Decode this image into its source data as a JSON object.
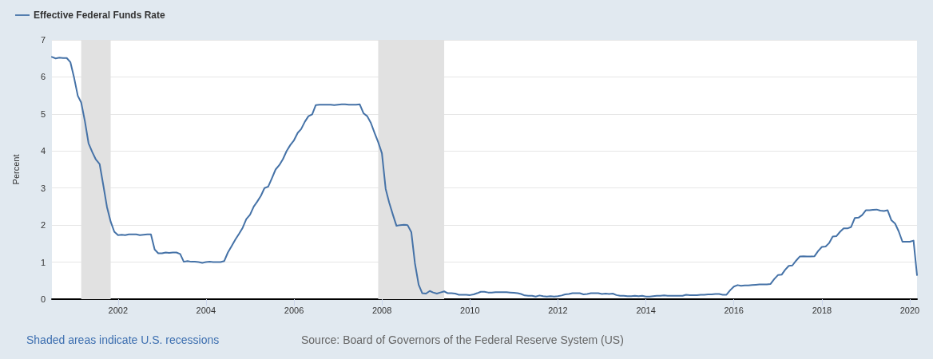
{
  "chart_data": {
    "type": "line",
    "ylabel": "Percent",
    "legend": "top left",
    "grid": "y",
    "marker": "none",
    "line_style": "solid",
    "annotations": [
      "Shaded areas indicate U.S. recessions",
      "Source: Board of Governors of the Federal Reserve System (US)"
    ],
    "xlim": [
      "2000-07",
      "2020-03"
    ],
    "xticks": [
      "2002",
      "2004",
      "2006",
      "2008",
      "2010",
      "2012",
      "2014",
      "2016",
      "2018",
      "2020"
    ],
    "ylim": [
      0,
      7
    ],
    "yticks": [
      0,
      1,
      2,
      3,
      4,
      5,
      6,
      7
    ],
    "bands": [
      {
        "axis": "x",
        "from": "2001-03",
        "to": "2001-11",
        "color": "#e1e1e1"
      },
      {
        "axis": "x",
        "from": "2007-12",
        "to": "2009-06",
        "color": "#e1e1e1"
      }
    ],
    "x": [
      "2000-07",
      "2000-08",
      "2000-09",
      "2000-10",
      "2000-11",
      "2000-12",
      "2001-01",
      "2001-02",
      "2001-03",
      "2001-04",
      "2001-05",
      "2001-06",
      "2001-07",
      "2001-08",
      "2001-09",
      "2001-10",
      "2001-11",
      "2001-12",
      "2002-01",
      "2002-02",
      "2002-03",
      "2002-04",
      "2002-05",
      "2002-06",
      "2002-07",
      "2002-08",
      "2002-09",
      "2002-10",
      "2002-11",
      "2002-12",
      "2003-01",
      "2003-02",
      "2003-03",
      "2003-04",
      "2003-05",
      "2003-06",
      "2003-07",
      "2003-08",
      "2003-09",
      "2003-10",
      "2003-11",
      "2003-12",
      "2004-01",
      "2004-02",
      "2004-03",
      "2004-04",
      "2004-05",
      "2004-06",
      "2004-07",
      "2004-08",
      "2004-09",
      "2004-10",
      "2004-11",
      "2004-12",
      "2005-01",
      "2005-02",
      "2005-03",
      "2005-04",
      "2005-05",
      "2005-06",
      "2005-07",
      "2005-08",
      "2005-09",
      "2005-10",
      "2005-11",
      "2005-12",
      "2006-01",
      "2006-02",
      "2006-03",
      "2006-04",
      "2006-05",
      "2006-06",
      "2006-07",
      "2006-08",
      "2006-09",
      "2006-10",
      "2006-11",
      "2006-12",
      "2007-01",
      "2007-02",
      "2007-03",
      "2007-04",
      "2007-05",
      "2007-06",
      "2007-07",
      "2007-08",
      "2007-09",
      "2007-10",
      "2007-11",
      "2007-12",
      "2008-01",
      "2008-02",
      "2008-03",
      "2008-04",
      "2008-05",
      "2008-06",
      "2008-07",
      "2008-08",
      "2008-09",
      "2008-10",
      "2008-11",
      "2008-12",
      "2009-01",
      "2009-02",
      "2009-03",
      "2009-04",
      "2009-05",
      "2009-06",
      "2009-07",
      "2009-08",
      "2009-09",
      "2009-10",
      "2009-11",
      "2009-12",
      "2010-01",
      "2010-02",
      "2010-03",
      "2010-04",
      "2010-05",
      "2010-06",
      "2010-07",
      "2010-08",
      "2010-09",
      "2010-10",
      "2010-11",
      "2010-12",
      "2011-01",
      "2011-02",
      "2011-03",
      "2011-04",
      "2011-05",
      "2011-06",
      "2011-07",
      "2011-08",
      "2011-09",
      "2011-10",
      "2011-11",
      "2011-12",
      "2012-01",
      "2012-02",
      "2012-03",
      "2012-04",
      "2012-05",
      "2012-06",
      "2012-07",
      "2012-08",
      "2012-09",
      "2012-10",
      "2012-11",
      "2012-12",
      "2013-01",
      "2013-02",
      "2013-03",
      "2013-04",
      "2013-05",
      "2013-06",
      "2013-07",
      "2013-08",
      "2013-09",
      "2013-10",
      "2013-11",
      "2013-12",
      "2014-01",
      "2014-02",
      "2014-03",
      "2014-04",
      "2014-05",
      "2014-06",
      "2014-07",
      "2014-08",
      "2014-09",
      "2014-10",
      "2014-11",
      "2014-12",
      "2015-01",
      "2015-02",
      "2015-03",
      "2015-04",
      "2015-05",
      "2015-06",
      "2015-07",
      "2015-08",
      "2015-09",
      "2015-10",
      "2015-11",
      "2015-12",
      "2016-01",
      "2016-02",
      "2016-03",
      "2016-04",
      "2016-05",
      "2016-06",
      "2016-07",
      "2016-08",
      "2016-09",
      "2016-10",
      "2016-11",
      "2016-12",
      "2017-01",
      "2017-02",
      "2017-03",
      "2017-04",
      "2017-05",
      "2017-06",
      "2017-07",
      "2017-08",
      "2017-09",
      "2017-10",
      "2017-11",
      "2017-12",
      "2018-01",
      "2018-02",
      "2018-03",
      "2018-04",
      "2018-05",
      "2018-06",
      "2018-07",
      "2018-08",
      "2018-09",
      "2018-10",
      "2018-11",
      "2018-12",
      "2019-01",
      "2019-02",
      "2019-03",
      "2019-04",
      "2019-05",
      "2019-06",
      "2019-07",
      "2019-08",
      "2019-09",
      "2019-10",
      "2019-11",
      "2019-12",
      "2020-01",
      "2020-02",
      "2020-03"
    ],
    "series": [
      {
        "name": "Effective Federal Funds Rate",
        "color": "#4572a7",
        "values": [
          6.54,
          6.5,
          6.52,
          6.51,
          6.51,
          6.4,
          5.98,
          5.49,
          5.31,
          4.8,
          4.21,
          3.97,
          3.77,
          3.65,
          3.07,
          2.49,
          2.09,
          1.82,
          1.73,
          1.74,
          1.73,
          1.75,
          1.75,
          1.75,
          1.73,
          1.74,
          1.75,
          1.75,
          1.34,
          1.24,
          1.24,
          1.26,
          1.25,
          1.26,
          1.26,
          1.22,
          1.01,
          1.03,
          1.01,
          1.01,
          1.0,
          0.98,
          1.0,
          1.01,
          1.0,
          1.0,
          1.0,
          1.03,
          1.26,
          1.43,
          1.61,
          1.76,
          1.93,
          2.16,
          2.28,
          2.5,
          2.63,
          2.79,
          3.0,
          3.04,
          3.26,
          3.5,
          3.62,
          3.78,
          4.0,
          4.16,
          4.29,
          4.49,
          4.59,
          4.79,
          4.94,
          4.99,
          5.24,
          5.25,
          5.25,
          5.25,
          5.25,
          5.24,
          5.25,
          5.26,
          5.26,
          5.25,
          5.25,
          5.25,
          5.26,
          5.02,
          4.94,
          4.76,
          4.49,
          4.24,
          3.94,
          2.98,
          2.61,
          2.28,
          1.98,
          2.0,
          2.01,
          2.0,
          1.81,
          0.97,
          0.39,
          0.16,
          0.15,
          0.22,
          0.18,
          0.15,
          0.18,
          0.21,
          0.16,
          0.16,
          0.15,
          0.12,
          0.12,
          0.12,
          0.11,
          0.13,
          0.16,
          0.2,
          0.2,
          0.18,
          0.18,
          0.19,
          0.19,
          0.19,
          0.19,
          0.18,
          0.17,
          0.16,
          0.14,
          0.1,
          0.09,
          0.09,
          0.07,
          0.1,
          0.08,
          0.07,
          0.08,
          0.07,
          0.08,
          0.1,
          0.13,
          0.14,
          0.16,
          0.16,
          0.16,
          0.13,
          0.14,
          0.16,
          0.16,
          0.16,
          0.14,
          0.15,
          0.14,
          0.15,
          0.11,
          0.09,
          0.09,
          0.08,
          0.08,
          0.09,
          0.08,
          0.09,
          0.07,
          0.07,
          0.08,
          0.09,
          0.09,
          0.1,
          0.09,
          0.09,
          0.09,
          0.09,
          0.09,
          0.12,
          0.11,
          0.11,
          0.11,
          0.12,
          0.12,
          0.13,
          0.13,
          0.14,
          0.14,
          0.12,
          0.12,
          0.24,
          0.34,
          0.38,
          0.36,
          0.37,
          0.37,
          0.38,
          0.39,
          0.4,
          0.4,
          0.4,
          0.41,
          0.54,
          0.65,
          0.66,
          0.79,
          0.9,
          0.91,
          1.04,
          1.15,
          1.16,
          1.15,
          1.15,
          1.16,
          1.3,
          1.41,
          1.42,
          1.51,
          1.69,
          1.7,
          1.82,
          1.91,
          1.91,
          1.95,
          2.19,
          2.2,
          2.27,
          2.4,
          2.4,
          2.41,
          2.42,
          2.39,
          2.38,
          2.4,
          2.13,
          2.04,
          1.83,
          1.55,
          1.55,
          1.55,
          1.58,
          0.65
        ]
      }
    ]
  }
}
